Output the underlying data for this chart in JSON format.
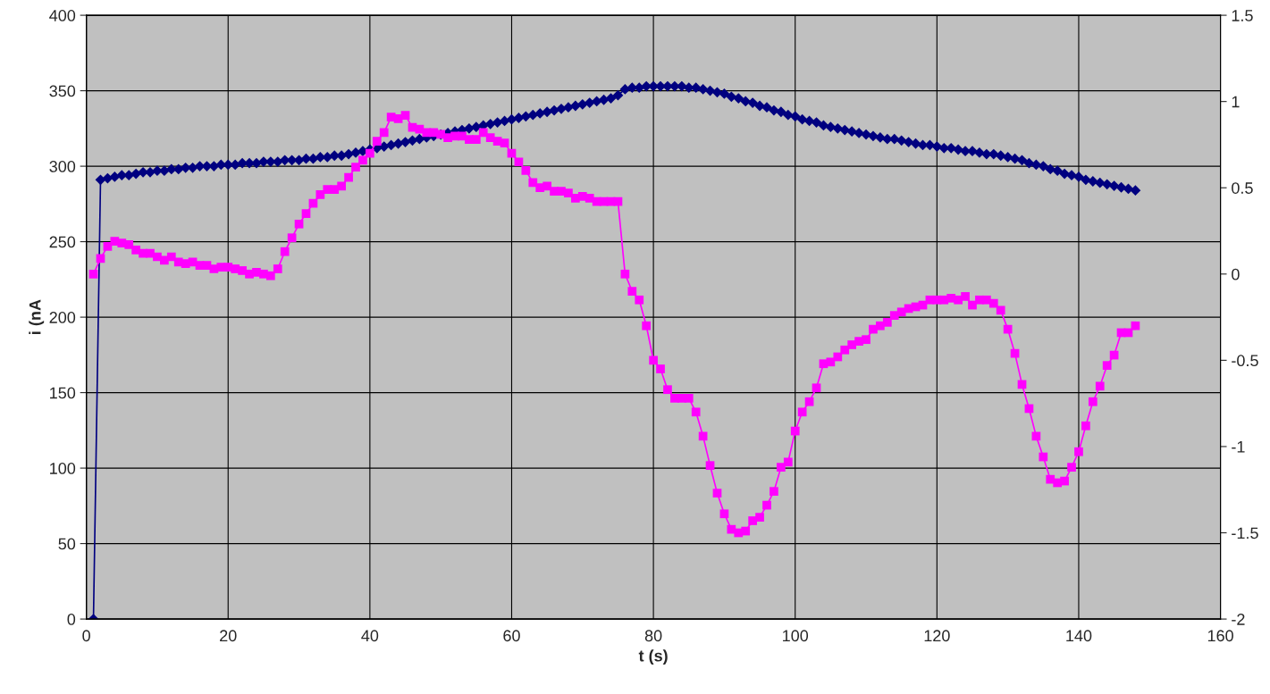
{
  "chart_data": {
    "type": "line",
    "xlabel": "t (s)",
    "ylabel": "i (nA",
    "x": [
      1,
      2,
      3,
      4,
      5,
      6,
      7,
      8,
      9,
      10,
      11,
      12,
      13,
      14,
      15,
      16,
      17,
      18,
      19,
      20,
      21,
      22,
      23,
      24,
      25,
      26,
      27,
      28,
      29,
      30,
      31,
      32,
      33,
      34,
      35,
      36,
      37,
      38,
      39,
      40,
      41,
      42,
      43,
      44,
      45,
      46,
      47,
      48,
      49,
      50,
      51,
      52,
      53,
      54,
      55,
      56,
      57,
      58,
      59,
      60,
      61,
      62,
      63,
      64,
      65,
      66,
      67,
      68,
      69,
      70,
      71,
      72,
      73,
      74,
      75,
      76,
      77,
      78,
      79,
      80,
      81,
      82,
      83,
      84,
      85,
      86,
      87,
      88,
      89,
      90,
      91,
      92,
      93,
      94,
      95,
      96,
      97,
      98,
      99,
      100,
      101,
      102,
      103,
      104,
      105,
      106,
      107,
      108,
      109,
      110,
      111,
      112,
      113,
      114,
      115,
      116,
      117,
      118,
      119,
      120,
      121,
      122,
      123,
      124,
      125,
      126,
      127,
      128,
      129,
      130,
      131,
      132,
      133,
      134,
      135,
      136,
      137,
      138,
      139,
      140,
      141,
      142,
      143,
      144,
      145,
      146,
      147,
      148
    ],
    "series": [
      {
        "color": "#000080",
        "marker": "diamond",
        "values": [
          0,
          291,
          292,
          293,
          294,
          294,
          295,
          296,
          296,
          297,
          297,
          298,
          298,
          299,
          299,
          300,
          300,
          300,
          301,
          301,
          301,
          302,
          302,
          302,
          303,
          303,
          303,
          304,
          304,
          304,
          305,
          305,
          306,
          306,
          307,
          307,
          308,
          309,
          310,
          311,
          312,
          313,
          314,
          315,
          316,
          317,
          318,
          319,
          320,
          321,
          322,
          323,
          324,
          325,
          326,
          327,
          328,
          329,
          330,
          331,
          332,
          333,
          334,
          335,
          336,
          337,
          338,
          339,
          340,
          341,
          342,
          343,
          344,
          345,
          347,
          351,
          352,
          352,
          353,
          353,
          353,
          353,
          353,
          353,
          352,
          352,
          351,
          350,
          349,
          348,
          346,
          345,
          343,
          342,
          340,
          339,
          337,
          336,
          334,
          333,
          331,
          330,
          329,
          327,
          326,
          325,
          324,
          323,
          322,
          321,
          320,
          319,
          318,
          318,
          317,
          316,
          315,
          314,
          314,
          313,
          312,
          312,
          311,
          310,
          310,
          309,
          308,
          308,
          307,
          306,
          305,
          304,
          302,
          301,
          300,
          298,
          297,
          295,
          294,
          293,
          291,
          290,
          289,
          288,
          287,
          286,
          285,
          284
        ]
      },
      {
        "color": "#ff00ff",
        "marker": "square",
        "axis": "y2",
        "values": [
          0.0,
          0.09,
          0.16,
          0.19,
          0.18,
          0.17,
          0.14,
          0.12,
          0.12,
          0.1,
          0.08,
          0.1,
          0.07,
          0.06,
          0.07,
          0.05,
          0.05,
          0.03,
          0.04,
          0.04,
          0.03,
          0.02,
          0.0,
          0.01,
          0.0,
          -0.01,
          0.03,
          0.13,
          0.21,
          0.29,
          0.35,
          0.41,
          0.46,
          0.49,
          0.49,
          0.51,
          0.56,
          0.62,
          0.66,
          0.7,
          0.77,
          0.82,
          0.91,
          0.9,
          0.92,
          0.85,
          0.84,
          0.82,
          0.82,
          0.81,
          0.79,
          0.8,
          0.8,
          0.78,
          0.78,
          0.82,
          0.79,
          0.77,
          0.76,
          0.7,
          0.65,
          0.6,
          0.53,
          0.5,
          0.51,
          0.48,
          0.48,
          0.47,
          0.44,
          0.45,
          0.44,
          0.42,
          0.42,
          0.42,
          0.42,
          0.0,
          -0.1,
          -0.15,
          -0.3,
          -0.5,
          -0.55,
          -0.67,
          -0.72,
          -0.72,
          -0.72,
          -0.8,
          -0.94,
          -1.11,
          -1.27,
          -1.39,
          -1.48,
          -1.5,
          -1.49,
          -1.43,
          -1.41,
          -1.34,
          -1.26,
          -1.12,
          -1.09,
          -0.91,
          -0.8,
          -0.74,
          -0.66,
          -0.52,
          -0.51,
          -0.48,
          -0.44,
          -0.41,
          -0.39,
          -0.38,
          -0.32,
          -0.3,
          -0.28,
          -0.24,
          -0.22,
          -0.2,
          -0.19,
          -0.18,
          -0.15,
          -0.15,
          -0.15,
          -0.14,
          -0.15,
          -0.13,
          -0.18,
          -0.15,
          -0.15,
          -0.17,
          -0.21,
          -0.32,
          -0.46,
          -0.64,
          -0.78,
          -0.94,
          -1.06,
          -1.19,
          -1.21,
          -1.2,
          -1.12,
          -1.03,
          -0.88,
          -0.74,
          -0.65,
          -0.53,
          -0.47,
          -0.34,
          -0.34,
          -0.3
        ]
      }
    ],
    "xlim": [
      0,
      160
    ],
    "xticks": [
      0,
      20,
      40,
      60,
      80,
      100,
      120,
      140,
      160
    ],
    "ylim": [
      0,
      400
    ],
    "yticks": [
      0,
      50,
      100,
      150,
      200,
      250,
      300,
      350,
      400
    ],
    "y2lim": [
      -2,
      1.5
    ],
    "y2ticks": [
      -2,
      -1.5,
      -1,
      -0.5,
      0,
      0.5,
      1,
      1.5
    ],
    "grid": true
  }
}
